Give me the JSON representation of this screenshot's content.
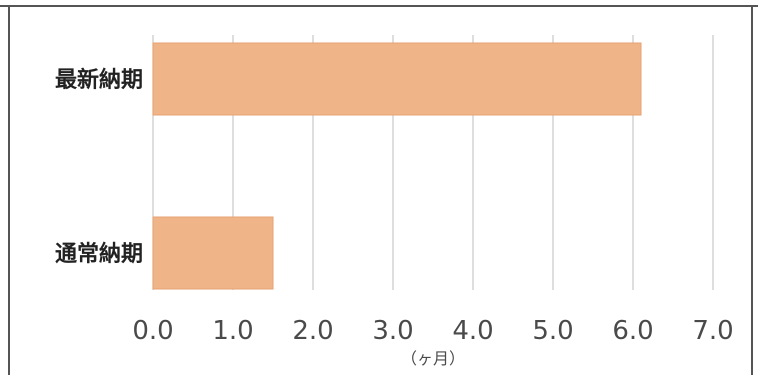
{
  "chart_data": {
    "type": "bar",
    "orientation": "horizontal",
    "categories": [
      "最新納期",
      "通常納期"
    ],
    "values": [
      6.1,
      1.5
    ],
    "xlim": [
      0,
      7
    ],
    "xticks": [
      "0.0",
      "1.0",
      "2.0",
      "3.0",
      "4.0",
      "5.0",
      "6.0",
      "7.0"
    ],
    "xlabel": "（ヶ月）",
    "title": "",
    "grid": true,
    "colors": {
      "bar": "#efb487",
      "bar_edge": "#e7a273",
      "grid": "#c9c9c9",
      "frame": "#555555",
      "tick_text": "#4a4a4a",
      "category_text": "#222222"
    }
  }
}
